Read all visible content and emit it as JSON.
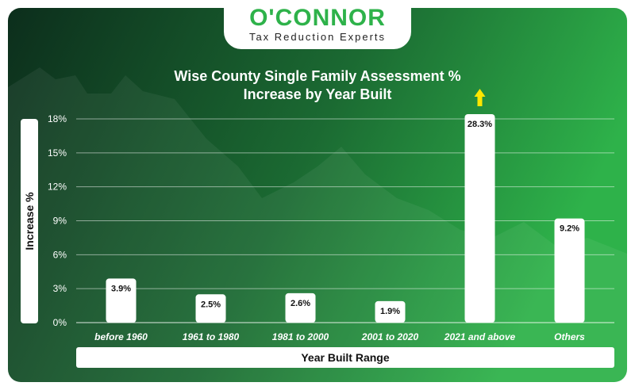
{
  "logo": {
    "brand": "O'CONNOR",
    "tagline": "Tax Reduction Experts"
  },
  "colors": {
    "bg_dark": "#0c2e1c",
    "bg_light": "#2eb24a",
    "bar": "#ffffff",
    "arrow": "#ffe600",
    "text": "#ffffff"
  },
  "chart_data": {
    "type": "bar",
    "title": [
      "Wise County Single Family Assessment %",
      "Increase by Year Built"
    ],
    "xlabel": "Year Built Range",
    "ylabel": "Increase %",
    "categories": [
      "before 1960",
      "1961 to 1980",
      "1981 to 2000",
      "2001 to 2020",
      "2021 and above",
      "Others"
    ],
    "values": [
      3.9,
      2.5,
      2.6,
      1.9,
      28.3,
      9.2
    ],
    "data_labels": [
      "3.9%",
      "2.5%",
      "2.6%",
      "1.9%",
      "28.3%",
      "9.2%"
    ],
    "yticks": [
      0,
      3,
      6,
      9,
      12,
      15,
      18
    ],
    "ytick_labels": [
      "0%",
      "3%",
      "6%",
      "9%",
      "12%",
      "15%",
      "18%"
    ],
    "ylim": [
      0,
      18
    ],
    "clipped": [
      false,
      false,
      false,
      false,
      true,
      false
    ],
    "grid": true,
    "legend": "none"
  }
}
